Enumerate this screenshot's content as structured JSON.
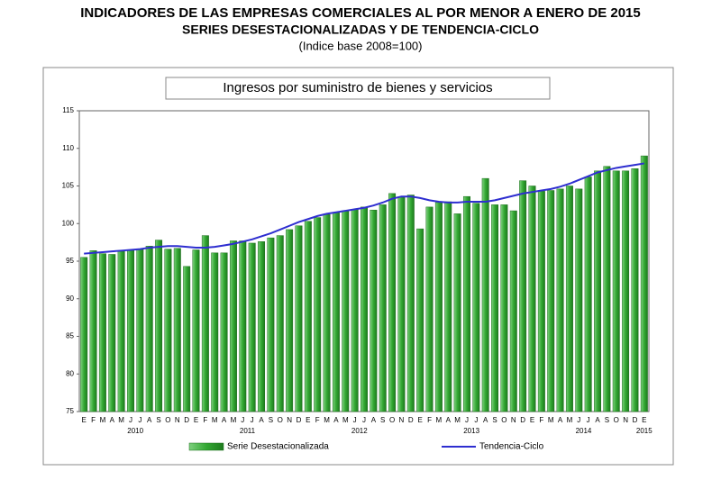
{
  "title": "INDICADORES DE LAS EMPRESAS COMERCIALES AL POR MENOR A ENERO DE 2015",
  "subtitle": "SERIES DESESTACIONALIZADAS Y DE TENDENCIA-CICLO",
  "note": "(Indice base 2008=100)",
  "chart_data": {
    "type": "bar",
    "title": "Ingresos por suministro de bienes y servicios",
    "categories": [
      "E",
      "F",
      "M",
      "A",
      "M",
      "J",
      "J",
      "A",
      "S",
      "O",
      "N",
      "D",
      "E",
      "F",
      "M",
      "A",
      "M",
      "J",
      "J",
      "A",
      "S",
      "O",
      "N",
      "D",
      "E",
      "F",
      "M",
      "A",
      "M",
      "J",
      "J",
      "A",
      "S",
      "O",
      "N",
      "D",
      "E",
      "F",
      "M",
      "A",
      "M",
      "J",
      "J",
      "A",
      "S",
      "O",
      "N",
      "D",
      "E",
      "F",
      "M",
      "A",
      "M",
      "J",
      "J",
      "A",
      "S",
      "O",
      "N",
      "D",
      "E"
    ],
    "years": [
      "2010",
      "2011",
      "2012",
      "2013",
      "2014",
      "2015"
    ],
    "series": [
      {
        "name": "Serie Desestacionalizada",
        "color": "#33a833",
        "values": [
          95.5,
          96.4,
          96.0,
          95.9,
          96.3,
          96.5,
          96.6,
          97.0,
          97.8,
          96.6,
          96.7,
          94.3,
          96.5,
          98.4,
          96.1,
          96.1,
          97.7,
          97.7,
          97.4,
          97.6,
          98.1,
          98.4,
          99.2,
          99.7,
          100.3,
          100.8,
          101.2,
          101.5,
          101.7,
          101.9,
          102.2,
          101.8,
          102.5,
          104.0,
          103.5,
          103.8,
          99.3,
          102.2,
          102.8,
          102.9,
          101.3,
          103.6,
          102.7,
          106.0,
          102.5,
          102.5,
          101.7,
          105.7,
          105.0,
          104.3,
          104.4,
          104.6,
          105.0,
          104.6,
          106.2,
          107.0,
          107.6,
          107.0,
          107.0,
          107.3,
          109.0
        ]
      },
      {
        "name": "Tendencia-Ciclo",
        "color": "#2e2ed0",
        "type": "line",
        "values": [
          96.0,
          96.1,
          96.2,
          96.3,
          96.4,
          96.5,
          96.6,
          96.8,
          96.9,
          97.0,
          97.0,
          96.9,
          96.8,
          96.8,
          96.9,
          97.1,
          97.3,
          97.6,
          97.9,
          98.3,
          98.7,
          99.2,
          99.7,
          100.2,
          100.6,
          101.0,
          101.3,
          101.5,
          101.7,
          101.9,
          102.1,
          102.4,
          102.8,
          103.3,
          103.6,
          103.6,
          103.4,
          103.1,
          102.9,
          102.8,
          102.8,
          102.9,
          102.9,
          102.9,
          103.1,
          103.4,
          103.7,
          104.0,
          104.2,
          104.4,
          104.6,
          104.9,
          105.3,
          105.8,
          106.3,
          106.8,
          107.1,
          107.4,
          107.6,
          107.8,
          108.0
        ]
      }
    ],
    "ylim": [
      75,
      115
    ],
    "yticks": [
      75,
      80,
      85,
      90,
      95,
      100,
      105,
      110,
      115
    ],
    "grid": false,
    "legend": "bottom"
  }
}
